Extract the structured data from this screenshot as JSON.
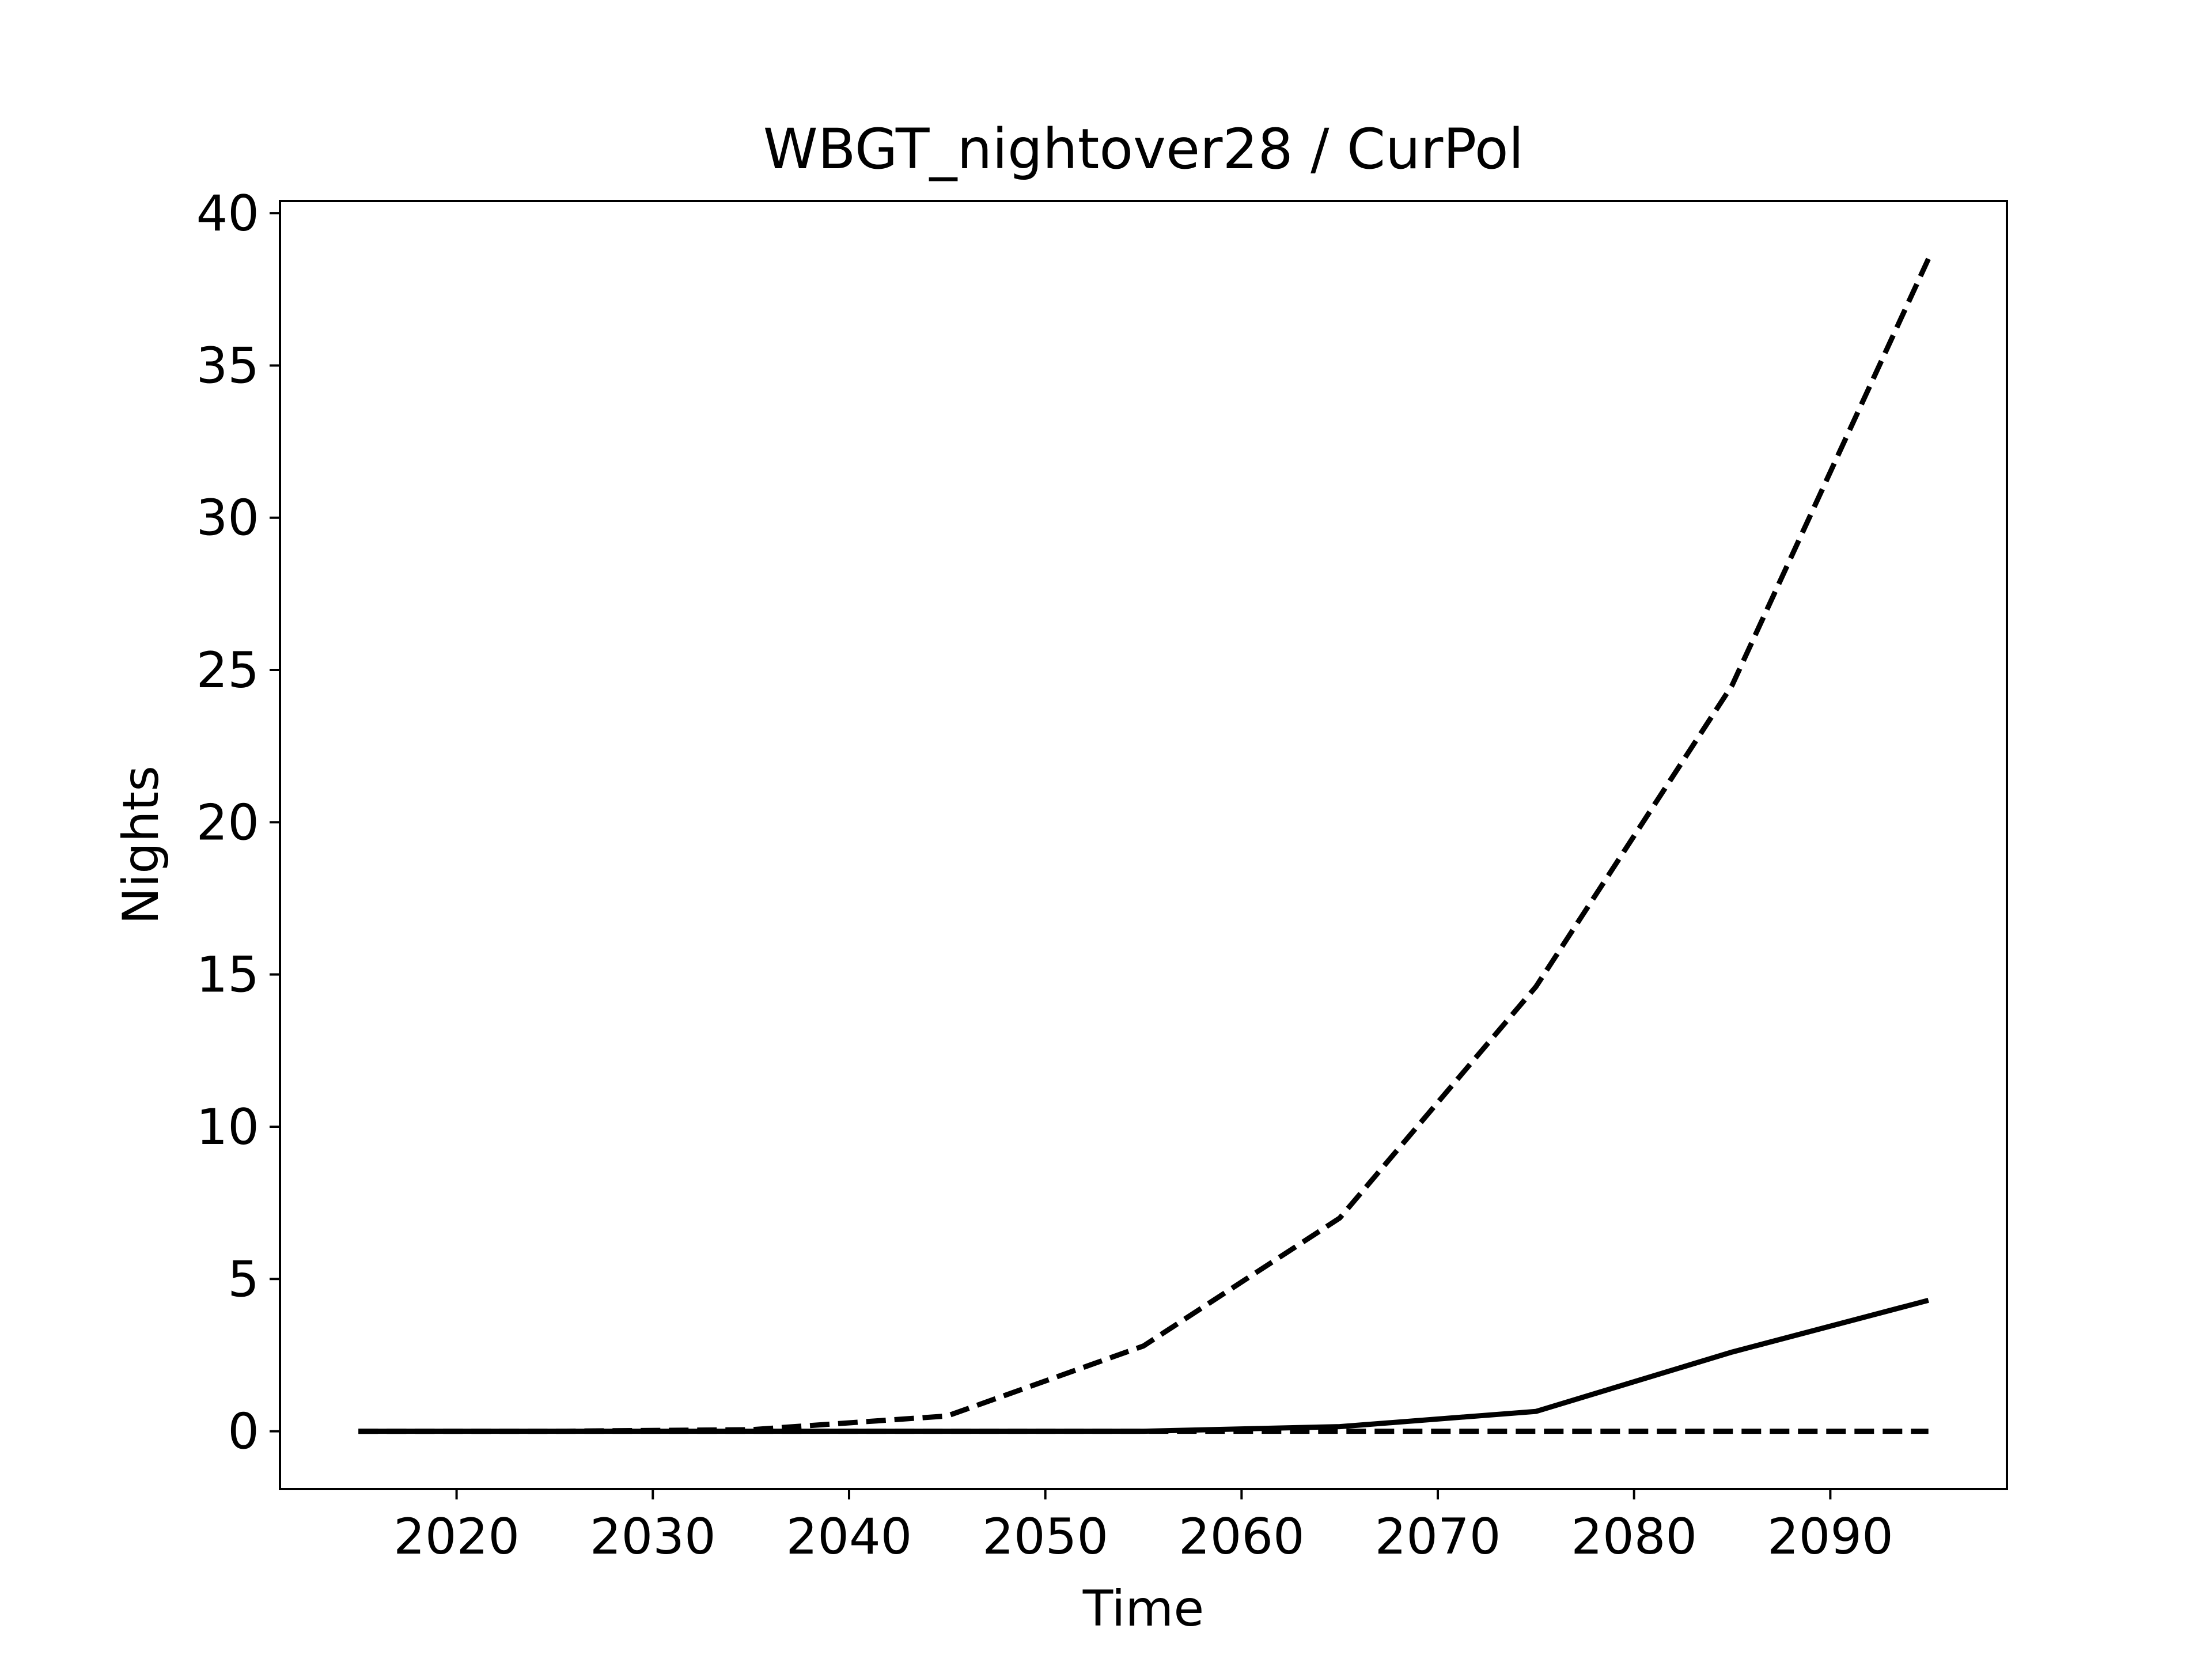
{
  "chart_data": {
    "type": "line",
    "title": "WBGT_nightover28 / CurPol",
    "xlabel": "Time",
    "ylabel": "Nights",
    "xlim": [
      2011,
      2099
    ],
    "ylim": [
      -1.9,
      40.4
    ],
    "xticks": [
      2020,
      2030,
      2040,
      2050,
      2060,
      2070,
      2080,
      2090
    ],
    "yticks": [
      0,
      5,
      10,
      15,
      20,
      25,
      30,
      35,
      40
    ],
    "grid": false,
    "legend": "none",
    "x": [
      2015,
      2025,
      2035,
      2045,
      2055,
      2065,
      2075,
      2085,
      2095
    ],
    "series": [
      {
        "style": "dashed",
        "color": "#000000",
        "values": [
          0,
          0,
          0.05,
          0.5,
          2.8,
          7.0,
          14.6,
          24.5,
          38.5
        ]
      },
      {
        "style": "solid",
        "color": "#000000",
        "values": [
          0,
          0,
          0,
          0,
          0,
          0.15,
          0.65,
          2.6,
          4.3
        ]
      },
      {
        "style": "dashed",
        "color": "#000000",
        "values": [
          0,
          0,
          0,
          0,
          0,
          0,
          0,
          0,
          0
        ]
      }
    ]
  }
}
